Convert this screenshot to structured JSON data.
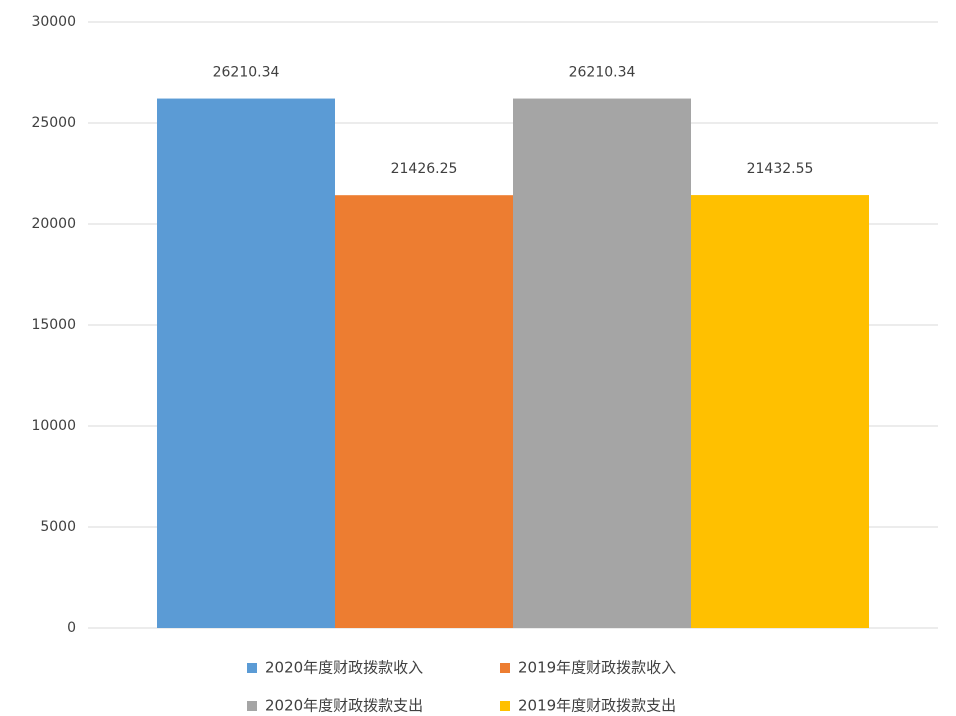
{
  "chart_data": {
    "type": "bar",
    "categories": [
      null
    ],
    "series": [
      {
        "name": "2020年度财政拨款收入",
        "color": "#5b9bd5",
        "values": [
          26210.34
        ]
      },
      {
        "name": "2019年度财政拨款收入",
        "color": "#ed7d31",
        "values": [
          21426.25
        ]
      },
      {
        "name": "2020年度财政拨款支出",
        "color": "#a5a5a5",
        "values": [
          26210.34
        ]
      },
      {
        "name": "2019年度财政拨款支出",
        "color": "#ffc000",
        "values": [
          21432.55
        ]
      }
    ],
    "ylim": [
      0,
      30000
    ],
    "yticks": [
      0,
      5000,
      10000,
      15000,
      20000,
      25000,
      30000
    ],
    "grid": true,
    "legend": "bottom"
  }
}
